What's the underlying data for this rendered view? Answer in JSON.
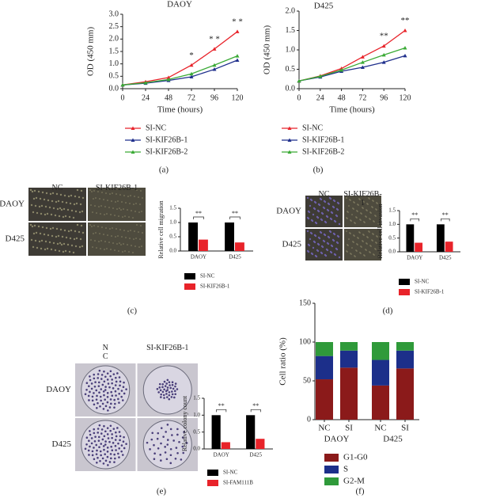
{
  "chart_data": [
    {
      "type": "line",
      "title": "DAOY",
      "panel_label": "(a)",
      "xlabel": "Time (hours)",
      "ylabel": "OD (450 mm)",
      "x": [
        0,
        24,
        48,
        72,
        96,
        120
      ],
      "xlim": [
        0,
        120
      ],
      "xticks": [
        0,
        24,
        48,
        72,
        96,
        120
      ],
      "ylim": [
        0,
        3
      ],
      "yticks": [
        {
          "value": 0,
          "label": "0.0"
        },
        0.5,
        {
          "value": 1,
          "label": "1.0"
        },
        1.5,
        {
          "value": 2,
          "label": "2.0"
        },
        2.5,
        {
          "value": 3,
          "label": "3.0"
        }
      ],
      "series": [
        {
          "name": "SI-NC",
          "color": "#e8232a",
          "values": [
            0.15,
            0.28,
            0.45,
            0.95,
            1.6,
            2.3
          ]
        },
        {
          "name": "SI-KIF26B-1",
          "color": "#1f2f8c",
          "values": [
            0.15,
            0.22,
            0.33,
            0.48,
            0.78,
            1.15
          ]
        },
        {
          "name": "SI-KIF26B-2",
          "color": "#3aaa35",
          "values": [
            0.15,
            0.24,
            0.37,
            0.6,
            0.95,
            1.32
          ]
        }
      ],
      "annotations": [
        {
          "x": 72,
          "text": "*"
        },
        {
          "x": 96,
          "text": "* *"
        },
        {
          "x": 120,
          "text": "* *"
        }
      ]
    },
    {
      "type": "line",
      "title": "D425",
      "panel_label": "(b)",
      "xlabel": "Time (hours)",
      "ylabel": "OD (450 mm)",
      "x": [
        0,
        24,
        48,
        72,
        96,
        120
      ],
      "xlim": [
        0,
        120
      ],
      "xticks": [
        0,
        24,
        48,
        72,
        96,
        120
      ],
      "ylim": [
        0,
        2
      ],
      "yticks": [
        {
          "value": 0,
          "label": "0.0"
        },
        0.5,
        {
          "value": 1,
          "label": "1.0"
        },
        1.5,
        {
          "value": 2,
          "label": "2.0"
        }
      ],
      "series": [
        {
          "name": "SI-NC",
          "color": "#e8232a",
          "values": [
            0.2,
            0.33,
            0.52,
            0.82,
            1.1,
            1.5
          ]
        },
        {
          "name": "SI-KIF26B-1",
          "color": "#1f2f8c",
          "values": [
            0.2,
            0.3,
            0.45,
            0.55,
            0.68,
            0.85
          ]
        },
        {
          "name": "SI-KIF26B-2",
          "color": "#3aaa35",
          "values": [
            0.2,
            0.32,
            0.48,
            0.68,
            0.87,
            1.05
          ]
        }
      ],
      "annotations": [
        {
          "x": 96,
          "text": "**"
        },
        {
          "x": 120,
          "text": "**"
        }
      ]
    },
    {
      "type": "bar",
      "panel_label": "(c)",
      "ylabel": "Relative cell migration",
      "image_labels": {
        "columns": [
          "NC",
          "SI-KIF26B-1"
        ],
        "rows": [
          "DAOY",
          "D425"
        ]
      },
      "categories": [
        "DAOY",
        "D425"
      ],
      "ylim": [
        0,
        1.5
      ],
      "yticks": [
        {
          "value": 0,
          "label": "0.0"
        },
        0.5,
        {
          "value": 1,
          "label": "1.0"
        },
        1.5
      ],
      "series": [
        {
          "name": "SI-NC",
          "color": "#000000",
          "values": [
            1,
            1
          ]
        },
        {
          "name": "SI-KIF26B-1",
          "color": "#e8232a",
          "values": [
            0.4,
            0.3
          ]
        }
      ],
      "annotations": [
        "**",
        "**"
      ]
    },
    {
      "type": "bar",
      "panel_label": "(d)",
      "ylabel": "Relative cell invasion",
      "image_labels": {
        "columns": [
          "NC",
          "SI-KIF26B-1"
        ],
        "rows": [
          "DAOY",
          "D425"
        ]
      },
      "categories": [
        "DAOY",
        "D425"
      ],
      "ylim": [
        0,
        1.5
      ],
      "yticks": [
        {
          "value": 0,
          "label": "0.0"
        },
        0.5,
        {
          "value": 1,
          "label": "1.0"
        },
        1.5
      ],
      "series": [
        {
          "name": "SI-NC",
          "color": "#000000",
          "values": [
            1,
            1
          ]
        },
        {
          "name": "SI-KIF26B-1",
          "color": "#e8232a",
          "values": [
            0.33,
            0.37
          ]
        }
      ],
      "annotations": [
        "**",
        "**"
      ]
    },
    {
      "type": "bar",
      "panel_label": "(e)",
      "ylabel": "Relative colony count",
      "image_labels": {
        "columns": [
          "N\nC",
          "SI-KIF26B-1"
        ],
        "rows": [
          "DAOY",
          "D425"
        ]
      },
      "categories": [
        "DAOY",
        "D425"
      ],
      "ylim": [
        0,
        1.5
      ],
      "yticks": [
        {
          "value": 0,
          "label": "0.0"
        },
        0.5,
        {
          "value": 1,
          "label": "1.0"
        },
        1.5
      ],
      "series": [
        {
          "name": "SI-NC",
          "color": "#000000",
          "values": [
            1,
            1
          ]
        },
        {
          "name": "SI-FAM111B",
          "color": "#e8232a",
          "values": [
            0.2,
            0.3
          ]
        }
      ],
      "annotations": [
        "**",
        "**"
      ]
    },
    {
      "type": "stacked_bar",
      "panel_label": "(f)",
      "ylabel": "Cell ratio (%)",
      "categories": [
        "NC",
        "SI",
        "NC",
        "SI"
      ],
      "groups": [
        "DAOY",
        "D425"
      ],
      "ylim": [
        0,
        150
      ],
      "yticks": [
        0,
        50,
        100,
        150
      ],
      "series": [
        {
          "name": "G1-G0",
          "color": "#8b1a1a",
          "values": [
            52,
            67,
            44,
            66
          ]
        },
        {
          "name": "S",
          "color": "#1c2f8a",
          "values": [
            30,
            22,
            33,
            23
          ]
        },
        {
          "name": "G2-M",
          "color": "#2f9a3a",
          "values": [
            18,
            11,
            23,
            11
          ]
        }
      ]
    }
  ]
}
